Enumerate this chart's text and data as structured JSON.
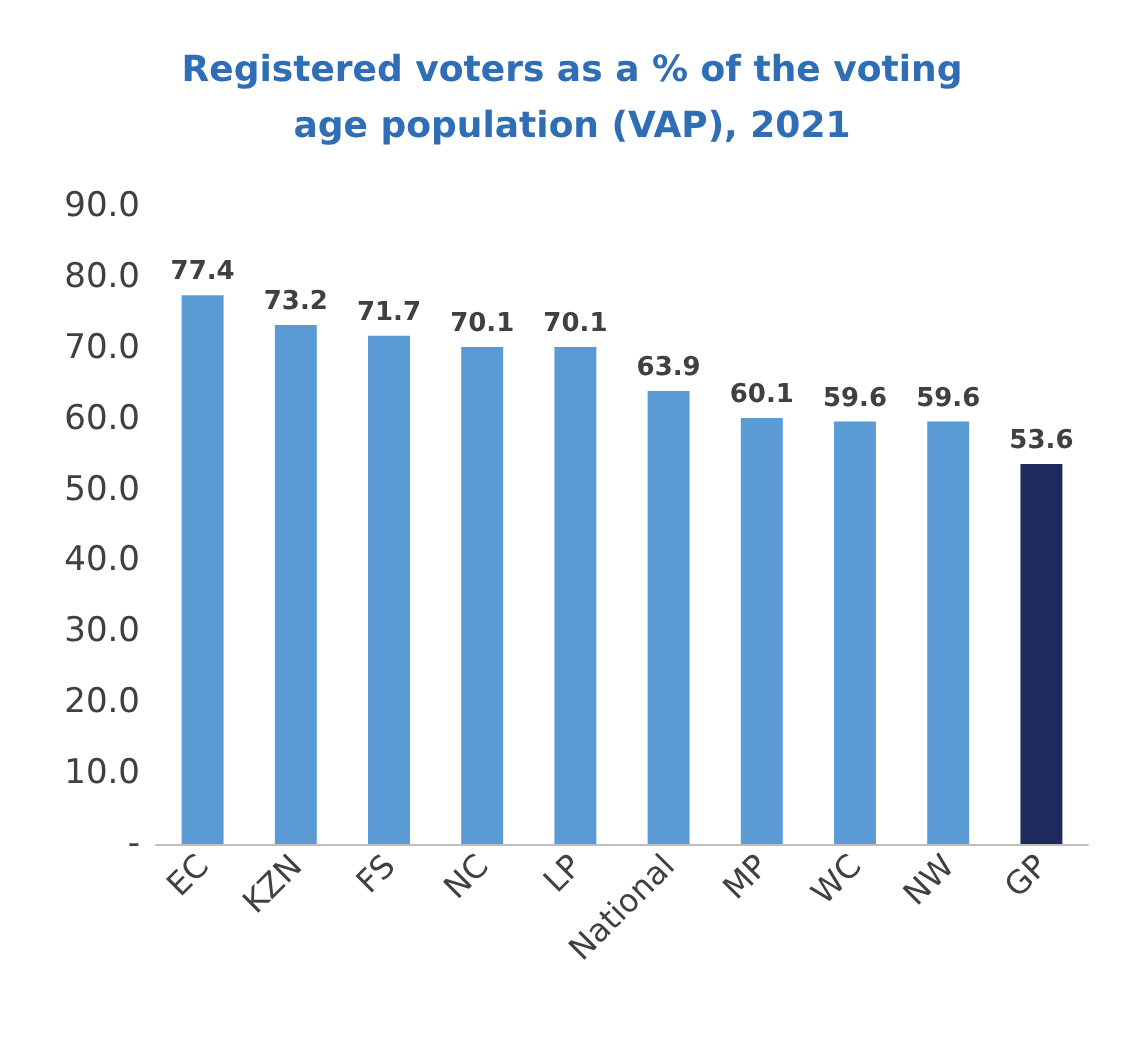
{
  "chart_data": {
    "type": "bar",
    "title": "Registered voters as a % of the voting\nage population (VAP), 2021",
    "categories": [
      "EC",
      "KZN",
      "FS",
      "NC",
      "LP",
      "National",
      "MP",
      "WC",
      "NW",
      "GP"
    ],
    "values": [
      77.4,
      73.2,
      71.7,
      70.1,
      70.1,
      63.9,
      60.1,
      59.6,
      59.6,
      53.6
    ],
    "colors": [
      "#5b9bd5",
      "#5b9bd5",
      "#5b9bd5",
      "#5b9bd5",
      "#5b9bd5",
      "#5b9bd5",
      "#5b9bd5",
      "#5b9bd5",
      "#5b9bd5",
      "#1f2a5c"
    ],
    "ylim": [
      0,
      90
    ],
    "yticks": [
      {
        "value": 0,
        "label": "-"
      },
      {
        "value": 10,
        "label": "10.0"
      },
      {
        "value": 20,
        "label": "20.0"
      },
      {
        "value": 30,
        "label": "30.0"
      },
      {
        "value": 40,
        "label": "40.0"
      },
      {
        "value": 50,
        "label": "50.0"
      },
      {
        "value": 60,
        "label": "60.0"
      },
      {
        "value": 70,
        "label": "70.0"
      },
      {
        "value": 80,
        "label": "80.0"
      },
      {
        "value": 90,
        "label": "90.0"
      }
    ],
    "data_labels": true,
    "grid": false
  }
}
